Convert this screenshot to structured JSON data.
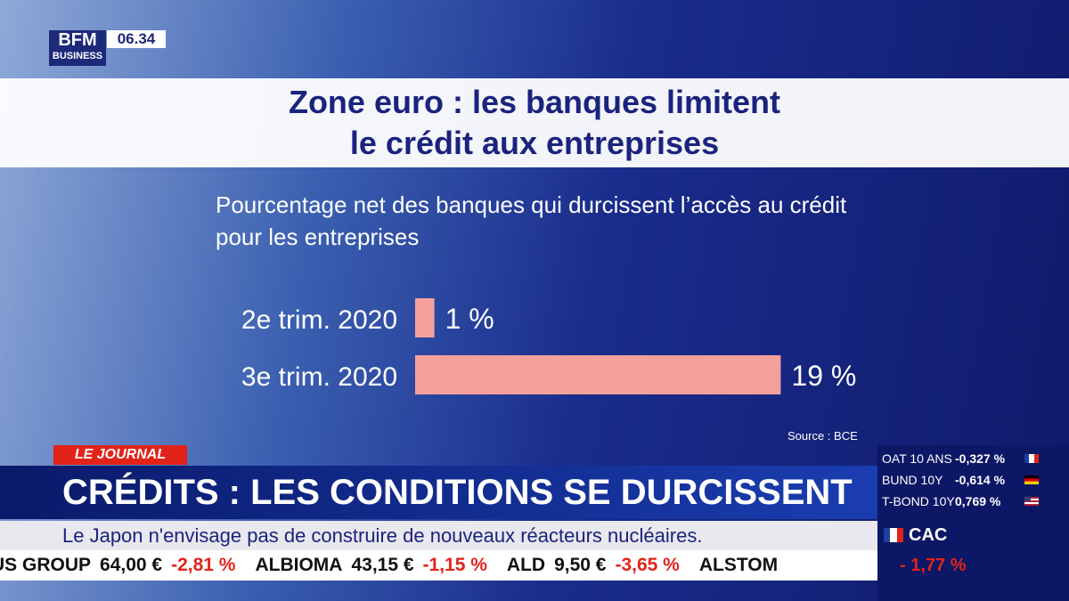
{
  "header": {
    "logo": "BFM",
    "logo_sub": "BUSINESS",
    "time": "06.34"
  },
  "chart_data": {
    "type": "bar",
    "orientation": "horizontal",
    "title": "Zone euro : les banques limitent\nle crédit aux entreprises",
    "subtitle": "Pourcentage net des banques qui durcissent l’accès au crédit pour les entreprises",
    "categories": [
      "2e trim. 2020",
      "3e trim. 2020"
    ],
    "values": [
      1,
      19
    ],
    "value_labels": [
      "1 %",
      "19 %"
    ],
    "color": "#f4a19b",
    "source": "Source : BCE"
  },
  "banner": {
    "tag": "LE JOURNAL",
    "headline": "CRÉDITS : LES CONDITIONS SE DURCISSENT",
    "crawl": "Le Japon n'envisage pas de construire de nouveaux réacteurs nucléaires."
  },
  "stocks": [
    {
      "name": "US GROUP",
      "price": "64,00 €",
      "change": "-2,81 %"
    },
    {
      "name": "ALBIOMA",
      "price": "43,15 €",
      "change": "-1,15 %"
    },
    {
      "name": "ALD",
      "price": "9,50 €",
      "change": "-3,65 %"
    },
    {
      "name": "ALSTOM",
      "price": null,
      "change": null
    }
  ],
  "markets": {
    "rates": [
      {
        "name": "OAT 10 ANS",
        "value": "-0,327 %"
      },
      {
        "name": "BUND 10Y",
        "value": "-0,614 %"
      },
      {
        "name": "T-BOND 10Y",
        "value": "0,769 %"
      }
    ],
    "index": {
      "name": "CAC",
      "change": "- 1,77 %"
    }
  }
}
